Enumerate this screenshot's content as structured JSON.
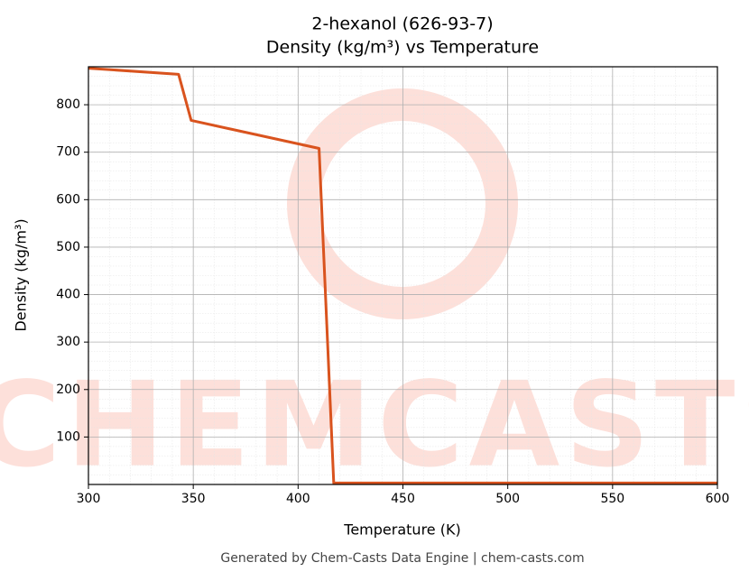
{
  "chart_data": {
    "type": "line",
    "title": "2-hexanol (626-93-7)",
    "subtitle": "Density (kg/m³) vs Temperature",
    "x_label": "Temperature (K)",
    "y_label": "Density (kg/m³)",
    "footer": "Generated by Chem-Casts Data Engine | chem-casts.com",
    "watermark": "CHEMCASTS",
    "x": [
      300,
      343,
      349,
      410,
      417,
      600
    ],
    "series": [
      {
        "name": "Density",
        "color": "#d9531e",
        "values": [
          877,
          864,
          767,
          708,
          3,
          3
        ]
      }
    ],
    "xlim": [
      300,
      600
    ],
    "xticks": [
      300,
      350,
      400,
      450,
      500,
      550,
      600
    ],
    "ylim": [
      0,
      880
    ],
    "yticks": [
      100,
      200,
      300,
      400,
      500,
      600,
      700,
      800
    ],
    "grid": true,
    "minor_grid": true
  }
}
